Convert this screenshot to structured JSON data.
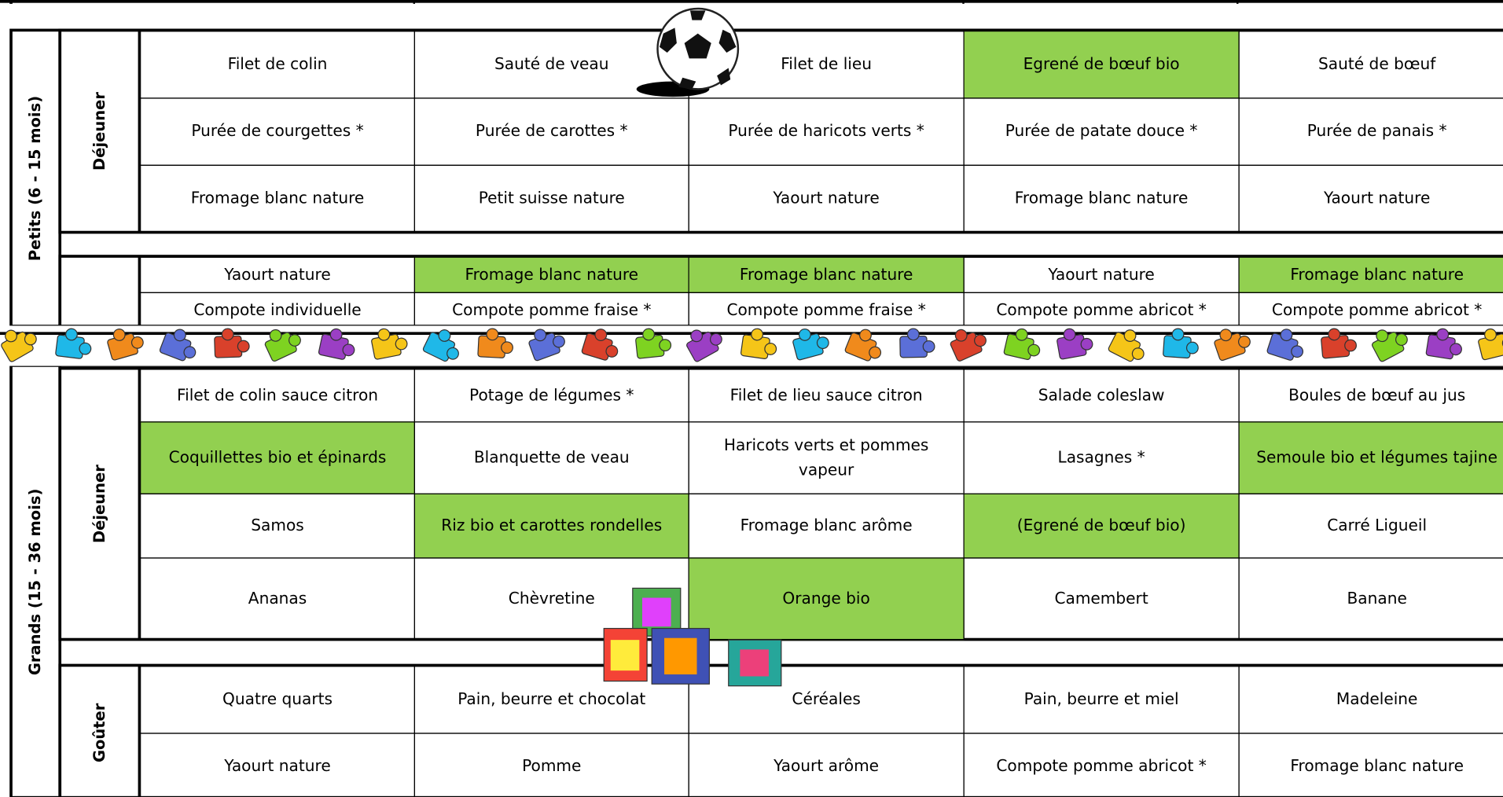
{
  "sections": [
    {
      "label": "Petits (6 - 15 mois)",
      "meals": [
        {
          "label": "Déjeuner",
          "rows": [
            [
              "Filet de colin",
              "Sauté de veau",
              "Filet de lieu",
              {
                "text": "Egrené de bœuf bio",
                "bg": "#92d050"
              },
              "Sauté de bœuf"
            ],
            [
              "Purée de courgettes *",
              "Purée de carottes *",
              "Purée de haricots verts *",
              "Purée de patate douce *",
              "Purée de panais *"
            ],
            [
              "Fromage blanc nature",
              "Petit suisse nature",
              "Yaourt nature",
              "Fromage blanc nature",
              "Yaourt nature"
            ]
          ]
        },
        {
          "rows": [
            [
              "Yaourt nature",
              {
                "text": "Fromage blanc nature",
                "bg": "#92d050"
              },
              {
                "text": "Fromage blanc nature",
                "bg": "#92d050"
              },
              "Yaourt nature",
              {
                "text": "Fromage blanc nature",
                "bg": "#92d050"
              }
            ],
            [
              "Compote individuelle",
              "Compote pomme fraise *",
              "Compote pomme fraise *",
              "Compote pomme abricot *",
              "Compote pomme abricot *"
            ]
          ]
        }
      ]
    },
    {
      "label": "Grands (15 - 36 mois)",
      "meals": [
        {
          "label": "Déjeuner",
          "rows": [
            [
              "Filet de colin sauce citron",
              "Potage de légumes *",
              "Filet de lieu sauce citron",
              "Salade coleslaw",
              "Boules de bœuf au jus"
            ],
            [
              {
                "text": "Coquillettes bio et épinards",
                "bg": "#92d050"
              },
              "Blanquette de veau",
              "Haricots verts et pommes vapeur",
              "Lasagnes *",
              {
                "text": "Semoule bio et légumes tajine",
                "bg": "#92d050"
              }
            ],
            [
              "Samos",
              {
                "text": "Riz bio et carottes rondelles",
                "bg": "#92d050"
              },
              "Fromage blanc arôme",
              {
                "text": "(Egrené de bœuf bio)",
                "bg": "#92d050"
              },
              "Carré Ligueil"
            ],
            [
              "Ananas",
              "Chèvretine",
              {
                "text": "Orange bio",
                "bg": "#92d050"
              },
              "Camembert",
              "Banane"
            ]
          ]
        },
        {
          "label": "Goûter",
          "rows": [
            [
              "Quatre quarts",
              "Pain, beurre et chocolat",
              "Céréales",
              "Pain, beurre et miel",
              "Madeleine"
            ],
            [
              "Yaourt nature",
              "Pomme",
              "Yaourt arôme",
              "Compote pomme abricot *",
              "Fromage blanc nature"
            ]
          ]
        }
      ]
    }
  ]
}
